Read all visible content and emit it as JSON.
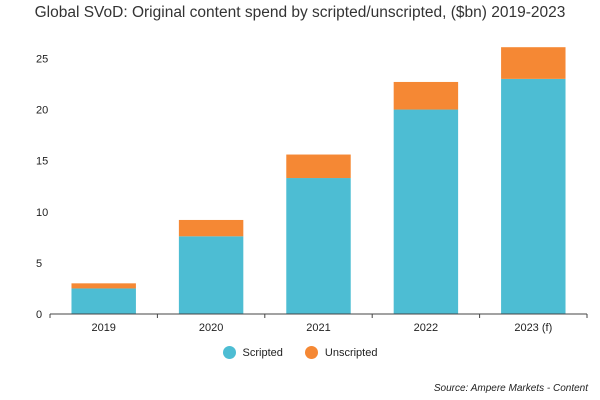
{
  "title": "Global SVoD: Original content spend by scripted/unscripted, ($bn) 2019-2023",
  "source": "Source: Ampere Markets - Content",
  "colors": {
    "scripted": "#4dbdd3",
    "unscripted": "#f58834"
  },
  "chart_data": {
    "type": "bar",
    "stacked": true,
    "title": "Global SVoD: Original content spend by scripted/unscripted, ($bn) 2019-2023",
    "xlabel": "",
    "ylabel": "",
    "categories": [
      "2019",
      "2020",
      "2021",
      "2022",
      "2023 (f)"
    ],
    "series": [
      {
        "name": "Scripted",
        "values": [
          2.5,
          7.6,
          13.3,
          20.0,
          23.0
        ]
      },
      {
        "name": "Unscripted",
        "values": [
          0.5,
          1.6,
          2.3,
          2.7,
          3.1
        ]
      }
    ],
    "ylim": [
      0,
      27
    ],
    "yticks": [
      0,
      5,
      10,
      15,
      20,
      25
    ],
    "grid": false,
    "legend_position": "bottom"
  }
}
